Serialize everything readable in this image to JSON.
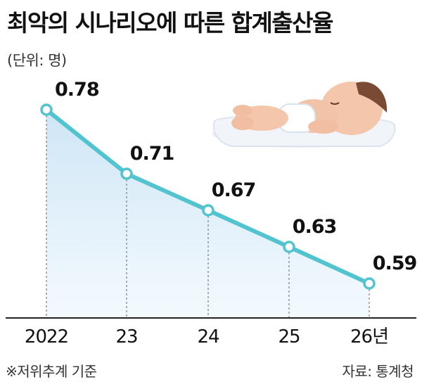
{
  "title": "최악의 시나리오에 따른 합계출산율",
  "unit_label": "(단위: 명)",
  "note": "※저위추계 기준",
  "source": "자료: 통계청",
  "colors": {
    "line": "#52c4cf",
    "area_top": "#cfe6f6",
    "area_bottom": "#f4fafe",
    "axis": "#222222",
    "guide": "#666666"
  },
  "chart_data": {
    "type": "area",
    "categories": [
      "2022",
      "23",
      "24",
      "25",
      "26년"
    ],
    "values": [
      0.78,
      0.71,
      0.67,
      0.63,
      0.59
    ],
    "data_labels": [
      "0.78",
      "0.71",
      "0.67",
      "0.63",
      "0.59"
    ],
    "grid": false,
    "markers": "hollow-circle",
    "decoration": "baby-illustration"
  }
}
